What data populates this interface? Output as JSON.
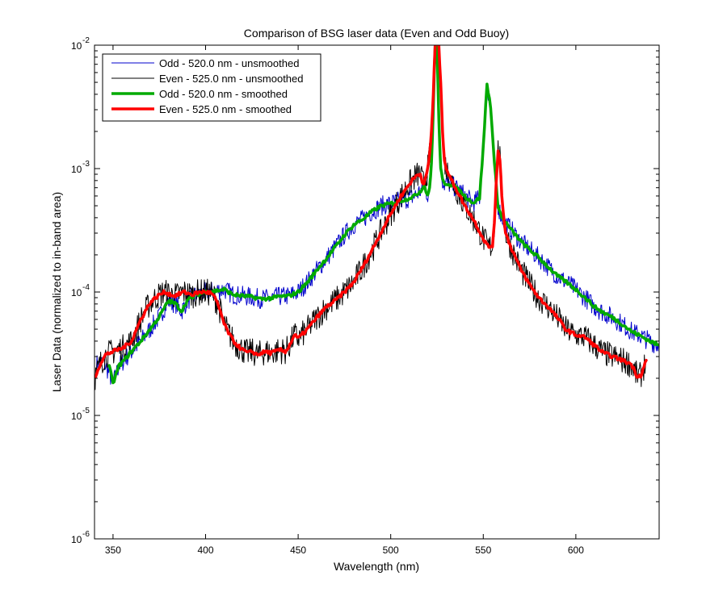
{
  "chart_data": {
    "type": "line",
    "title": "Comparison of BSG laser data (Even and Odd Buoy)",
    "xlabel": "Wavelength (nm)",
    "ylabel": "Laser Data (normalized to in-band area)",
    "xlim": [
      340,
      645
    ],
    "ylim": [
      1e-06,
      0.01
    ],
    "yscale": "log",
    "grid": false,
    "legend_position": "top-left",
    "x_ticks": [
      350,
      400,
      450,
      500,
      550,
      600
    ],
    "y_ticks": [
      {
        "base": "10",
        "exp": "-6",
        "value": 1e-06
      },
      {
        "base": "10",
        "exp": "-5",
        "value": 1e-05
      },
      {
        "base": "10",
        "exp": "-4",
        "value": 0.0001
      },
      {
        "base": "10",
        "exp": "-3",
        "value": 0.001
      },
      {
        "base": "10",
        "exp": "-2",
        "value": 0.01
      }
    ],
    "series": [
      {
        "name": "Odd - 520.0 nm - unsmoothed",
        "color": "#0000cc",
        "width": 1,
        "noise": 0.16,
        "x": [
          341,
          345,
          348,
          350,
          353,
          356,
          360,
          365,
          370,
          375,
          380,
          384,
          387,
          390,
          395,
          400,
          405,
          410,
          415,
          420,
          425,
          430,
          435,
          440,
          445,
          450,
          455,
          460,
          465,
          470,
          475,
          480,
          485,
          490,
          495,
          500,
          505,
          508,
          510,
          513,
          515,
          517,
          518,
          519,
          520,
          521,
          522,
          523,
          524,
          525,
          526,
          527,
          528,
          529,
          530,
          532,
          535,
          538,
          540,
          543,
          545,
          548,
          550,
          552,
          554,
          556,
          558,
          560,
          565,
          570,
          575,
          580,
          585,
          590,
          595,
          600,
          605,
          610,
          615,
          620,
          625,
          630,
          635,
          640,
          645
        ],
        "y": [
          2.6e-05,
          2.7e-05,
          2.2e-05,
          1.8e-05,
          2.5e-05,
          2.8e-05,
          3.3e-05,
          4e-05,
          5e-05,
          6.3e-05,
          8.5e-05,
          8e-05,
          7e-05,
          8.5e-05,
          9.5e-05,
          0.0001,
          0.000102,
          0.000105,
          9.5e-05,
          9.3e-05,
          9.1e-05,
          8.8e-05,
          8.9e-05,
          9.2e-05,
          9.3e-05,
          0.0001,
          0.00012,
          0.00015,
          0.000185,
          0.00023,
          0.00029,
          0.00035,
          0.00039,
          0.00045,
          0.0005,
          0.00052,
          0.00055,
          0.00056,
          0.00058,
          0.0006,
          0.00064,
          0.00068,
          0.00075,
          0.00065,
          0.00062,
          0.00068,
          0.0011,
          0.003,
          0.01,
          0.01,
          0.0025,
          0.001,
          0.0008,
          0.00075,
          0.00076,
          0.00075,
          0.0007,
          0.00065,
          0.0006,
          0.00055,
          0.00053,
          0.00058,
          0.0015,
          0.0048,
          0.0032,
          0.0011,
          0.0005,
          0.0004,
          0.00032,
          0.00026,
          0.00022,
          0.00019,
          0.00016,
          0.000135,
          0.00012,
          0.000105,
          9e-05,
          7.6e-05,
          6.8e-05,
          6.2e-05,
          5.5e-05,
          4.8e-05,
          4.4e-05,
          4e-05,
          3.7e-05
        ]
      },
      {
        "name": "Even - 525.0 nm - unsmoothed",
        "color": "#000000",
        "width": 1,
        "noise": 0.22,
        "x": [
          340,
          343,
          346,
          350,
          355,
          360,
          365,
          370,
          375,
          378,
          380,
          383,
          385,
          388,
          390,
          393,
          395,
          398,
          400,
          403,
          405,
          408,
          410,
          413,
          415,
          418,
          420,
          423,
          425,
          428,
          430,
          433,
          435,
          438,
          440,
          443,
          445,
          448,
          450,
          455,
          460,
          465,
          470,
          475,
          480,
          485,
          490,
          495,
          500,
          505,
          510,
          513,
          515,
          516,
          517,
          518,
          519,
          520,
          521,
          522,
          523,
          524,
          525,
          526,
          527,
          528,
          529,
          530,
          532,
          535,
          540,
          545,
          550,
          553,
          555,
          556,
          557,
          558,
          559,
          560,
          562,
          565,
          570,
          575,
          580,
          585,
          590,
          595,
          600,
          605,
          610,
          615,
          620,
          625,
          630,
          633,
          635,
          638
        ],
        "y": [
          2e-05,
          2.6e-05,
          3.1e-05,
          3.3e-05,
          3.5e-05,
          4e-05,
          6e-05,
          8.2e-05,
          9.5e-05,
          0.0001,
          9.7e-05,
          9.3e-05,
          9.5e-05,
          0.0001,
          9.8e-05,
          9.5e-05,
          9.8e-05,
          0.0001,
          0.0001,
          9.8e-05,
          9e-05,
          7e-05,
          5.5e-05,
          4.5e-05,
          4e-05,
          3.6e-05,
          3.4e-05,
          3.2e-05,
          3.3e-05,
          3.1e-05,
          3.2e-05,
          3.3e-05,
          3.2e-05,
          3.3e-05,
          3.4e-05,
          3.3e-05,
          3.6e-05,
          4.5e-05,
          4.2e-05,
          5e-05,
          6.2e-05,
          7.5e-05,
          8.5e-05,
          0.0001,
          0.00012,
          0.00016,
          0.00022,
          0.00031,
          0.00043,
          0.00058,
          0.00075,
          0.00085,
          0.0009,
          0.0009,
          0.0008,
          0.00075,
          0.00085,
          0.001,
          0.0013,
          0.002,
          0.004,
          0.01,
          0.01,
          0.01,
          0.005,
          0.002,
          0.0012,
          0.001,
          0.00085,
          0.0007,
          0.0005,
          0.00038,
          0.00027,
          0.00023,
          0.00024,
          0.00035,
          0.0008,
          0.0014,
          0.0012,
          0.0006,
          0.0003,
          0.00023,
          0.000155,
          0.000115,
          9e-05,
          7.6e-05,
          6.2e-05,
          4.9e-05,
          4.5e-05,
          4.3e-05,
          3.7e-05,
          3.2e-05,
          3e-05,
          2.8e-05,
          2.6e-05,
          2.1e-05,
          2.1e-05,
          2.8e-05
        ]
      },
      {
        "name": "Odd - 520.0 nm - smoothed",
        "color": "#00aa00",
        "width": 3.5,
        "noise": 0.03,
        "x": [
          348,
          350,
          353,
          356,
          360,
          365,
          370,
          375,
          380,
          384,
          387,
          390,
          395,
          400,
          405,
          410,
          415,
          420,
          425,
          430,
          435,
          440,
          445,
          450,
          455,
          460,
          465,
          470,
          475,
          480,
          485,
          490,
          495,
          500,
          505,
          508,
          510,
          513,
          515,
          517,
          518,
          519,
          520,
          521,
          522,
          523,
          524,
          525,
          526,
          527,
          528,
          529,
          530,
          532,
          535,
          538,
          540,
          543,
          545,
          548,
          550,
          552,
          554,
          556,
          558,
          560,
          565,
          570,
          575,
          580,
          585,
          590,
          595,
          600,
          605,
          610,
          615,
          620,
          625,
          630,
          635,
          640,
          645
        ],
        "y": [
          2.5e-05,
          1.8e-05,
          2.5e-05,
          2.8e-05,
          3.3e-05,
          4e-05,
          5e-05,
          6.3e-05,
          8.5e-05,
          8e-05,
          7e-05,
          8.5e-05,
          9.5e-05,
          0.0001,
          0.000102,
          0.000105,
          9.5e-05,
          9.3e-05,
          9.1e-05,
          8.8e-05,
          8.9e-05,
          9.2e-05,
          9.3e-05,
          0.0001,
          0.00012,
          0.00015,
          0.000185,
          0.00023,
          0.00029,
          0.00035,
          0.00039,
          0.00045,
          0.0005,
          0.00052,
          0.00055,
          0.00056,
          0.00058,
          0.0006,
          0.00064,
          0.00068,
          0.00075,
          0.00065,
          0.00062,
          0.00068,
          0.0011,
          0.003,
          0.01,
          0.01,
          0.0025,
          0.001,
          0.0008,
          0.00075,
          0.00076,
          0.00075,
          0.0007,
          0.00065,
          0.0006,
          0.00055,
          0.00053,
          0.00058,
          0.0015,
          0.0048,
          0.0032,
          0.0011,
          0.0005,
          0.0004,
          0.00032,
          0.00026,
          0.00022,
          0.00019,
          0.00016,
          0.000135,
          0.00012,
          0.000105,
          9e-05,
          7.6e-05,
          6.8e-05,
          6.2e-05,
          5.5e-05,
          4.8e-05,
          4.4e-05,
          4e-05,
          3.7e-05
        ]
      },
      {
        "name": "Even - 525.0 nm - smoothed",
        "color": "#ff0000",
        "width": 3.5,
        "noise": 0.03,
        "x": [
          340,
          343,
          346,
          350,
          355,
          360,
          365,
          370,
          375,
          378,
          380,
          383,
          385,
          388,
          390,
          393,
          395,
          398,
          400,
          403,
          405,
          408,
          410,
          413,
          415,
          418,
          420,
          423,
          425,
          428,
          430,
          433,
          435,
          438,
          440,
          443,
          445,
          448,
          450,
          455,
          460,
          465,
          470,
          475,
          480,
          485,
          490,
          495,
          500,
          505,
          510,
          513,
          515,
          516,
          517,
          518,
          519,
          520,
          521,
          522,
          523,
          524,
          525,
          526,
          527,
          528,
          529,
          530,
          532,
          535,
          540,
          545,
          550,
          553,
          555,
          556,
          557,
          558,
          559,
          560,
          562,
          565,
          570,
          575,
          580,
          585,
          590,
          595,
          600,
          605,
          610,
          615,
          620,
          625,
          630,
          633,
          635,
          638
        ],
        "y": [
          2e-05,
          2.6e-05,
          3.1e-05,
          3.3e-05,
          3.5e-05,
          4e-05,
          6e-05,
          8.2e-05,
          9.5e-05,
          0.0001,
          9.7e-05,
          9.3e-05,
          9.5e-05,
          0.0001,
          9.8e-05,
          9.5e-05,
          9.8e-05,
          0.0001,
          0.0001,
          9.8e-05,
          9e-05,
          7e-05,
          5.5e-05,
          4.5e-05,
          4e-05,
          3.6e-05,
          3.4e-05,
          3.2e-05,
          3.3e-05,
          3.1e-05,
          3.2e-05,
          3.3e-05,
          3.2e-05,
          3.3e-05,
          3.4e-05,
          3.3e-05,
          3.6e-05,
          4.5e-05,
          4.2e-05,
          5e-05,
          6.2e-05,
          7.5e-05,
          8.5e-05,
          0.0001,
          0.00012,
          0.00016,
          0.00022,
          0.00031,
          0.00043,
          0.00058,
          0.00075,
          0.00085,
          0.0009,
          0.0009,
          0.0008,
          0.00075,
          0.00085,
          0.001,
          0.0013,
          0.002,
          0.004,
          0.01,
          0.01,
          0.01,
          0.005,
          0.002,
          0.0012,
          0.001,
          0.00085,
          0.0007,
          0.0005,
          0.00038,
          0.00027,
          0.00023,
          0.00024,
          0.00035,
          0.0008,
          0.0014,
          0.0012,
          0.0006,
          0.0003,
          0.00023,
          0.000155,
          0.000115,
          9e-05,
          7.6e-05,
          6.2e-05,
          4.9e-05,
          4.5e-05,
          4.3e-05,
          3.7e-05,
          3.2e-05,
          3e-05,
          2.8e-05,
          2.6e-05,
          2.1e-05,
          2.1e-05,
          2.8e-05
        ]
      }
    ]
  }
}
